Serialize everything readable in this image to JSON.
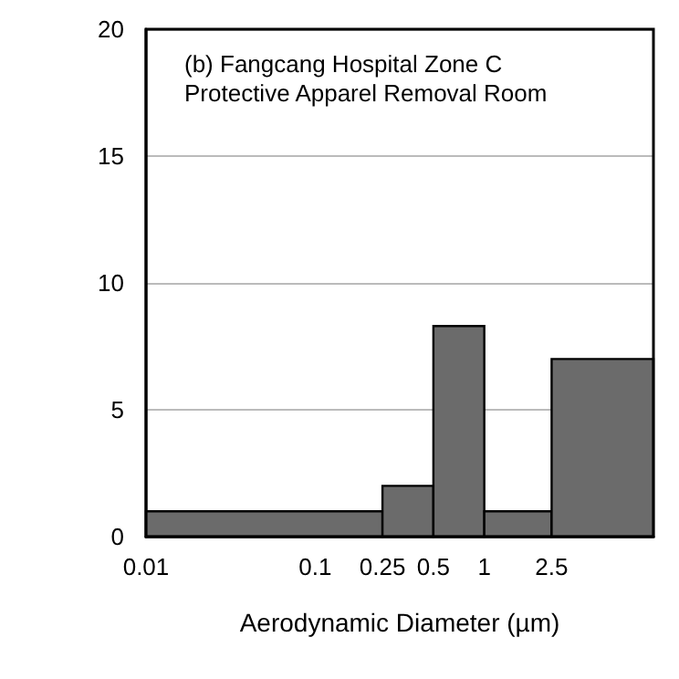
{
  "chart_data": {
    "type": "histogram",
    "title": "(b) Fangcang Hospital Zone C\nProtective Apparel Removal Room",
    "xlabel": "Aerodynamic Diameter (µm)",
    "bins": [
      0.01,
      0.25,
      0.5,
      1,
      2.5,
      10
    ],
    "values": [
      1,
      2,
      8.3,
      1,
      7.0
    ],
    "color": "#6b6b6b",
    "log": "x",
    "xlim": [
      0.01,
      10
    ],
    "xticks": [
      0.01,
      0.1,
      0.25,
      0.5,
      1,
      2.5
    ],
    "ylim": [
      0,
      20
    ],
    "yticks": [
      0,
      5,
      10,
      15,
      20
    ],
    "grid": "y"
  }
}
